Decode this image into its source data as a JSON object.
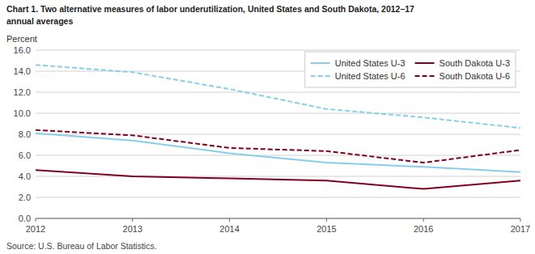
{
  "chart_data": {
    "type": "line",
    "title": "Chart 1. Two alternative measures of labor underutilization, United States and South Dakota, 2012–17",
    "subtitle": "annual averages",
    "y_label": "Percent",
    "annotations": [
      "Source: U.S. Bureau of Labor Statistics."
    ],
    "x": [
      2012,
      2013,
      2014,
      2015,
      2016,
      2017
    ],
    "xlim": [
      2012,
      2017
    ],
    "xticks": [
      2012,
      2013,
      2014,
      2015,
      2016,
      2017
    ],
    "ylim": [
      0.0,
      16.0
    ],
    "yticks": [
      {
        "value": 0.0,
        "label": "0.0"
      },
      {
        "value": 2.0,
        "label": "2.0"
      },
      {
        "value": 4.0,
        "label": "4.0"
      },
      {
        "value": 6.0,
        "label": "6.0"
      },
      {
        "value": 8.0,
        "label": "8.0"
      },
      {
        "value": 10.0,
        "label": "10.0"
      },
      {
        "value": 12.0,
        "label": "12.0"
      },
      {
        "value": 14.0,
        "label": "14.0"
      },
      {
        "value": 16.0,
        "label": "16.0"
      }
    ],
    "grid": true,
    "legend": "upper right",
    "series": [
      {
        "name": "United States  U-3",
        "color": "#87CEEB",
        "line_style": "solid",
        "values": [
          8.1,
          7.4,
          6.2,
          5.3,
          4.9,
          4.4
        ]
      },
      {
        "name": "United States  U-6",
        "color": "#87CEEB",
        "line_style": "dashed",
        "values": [
          14.6,
          13.9,
          12.3,
          10.4,
          9.6,
          8.6
        ]
      },
      {
        "name": "South Dakota  U-3",
        "color": "#800020",
        "line_style": "solid",
        "values": [
          4.6,
          4.0,
          3.8,
          3.6,
          2.8,
          3.6
        ]
      },
      {
        "name": "South Dakota  U-6",
        "color": "#800020",
        "line_style": "dashed",
        "values": [
          8.4,
          7.9,
          6.7,
          6.4,
          5.3,
          6.5
        ]
      }
    ]
  }
}
